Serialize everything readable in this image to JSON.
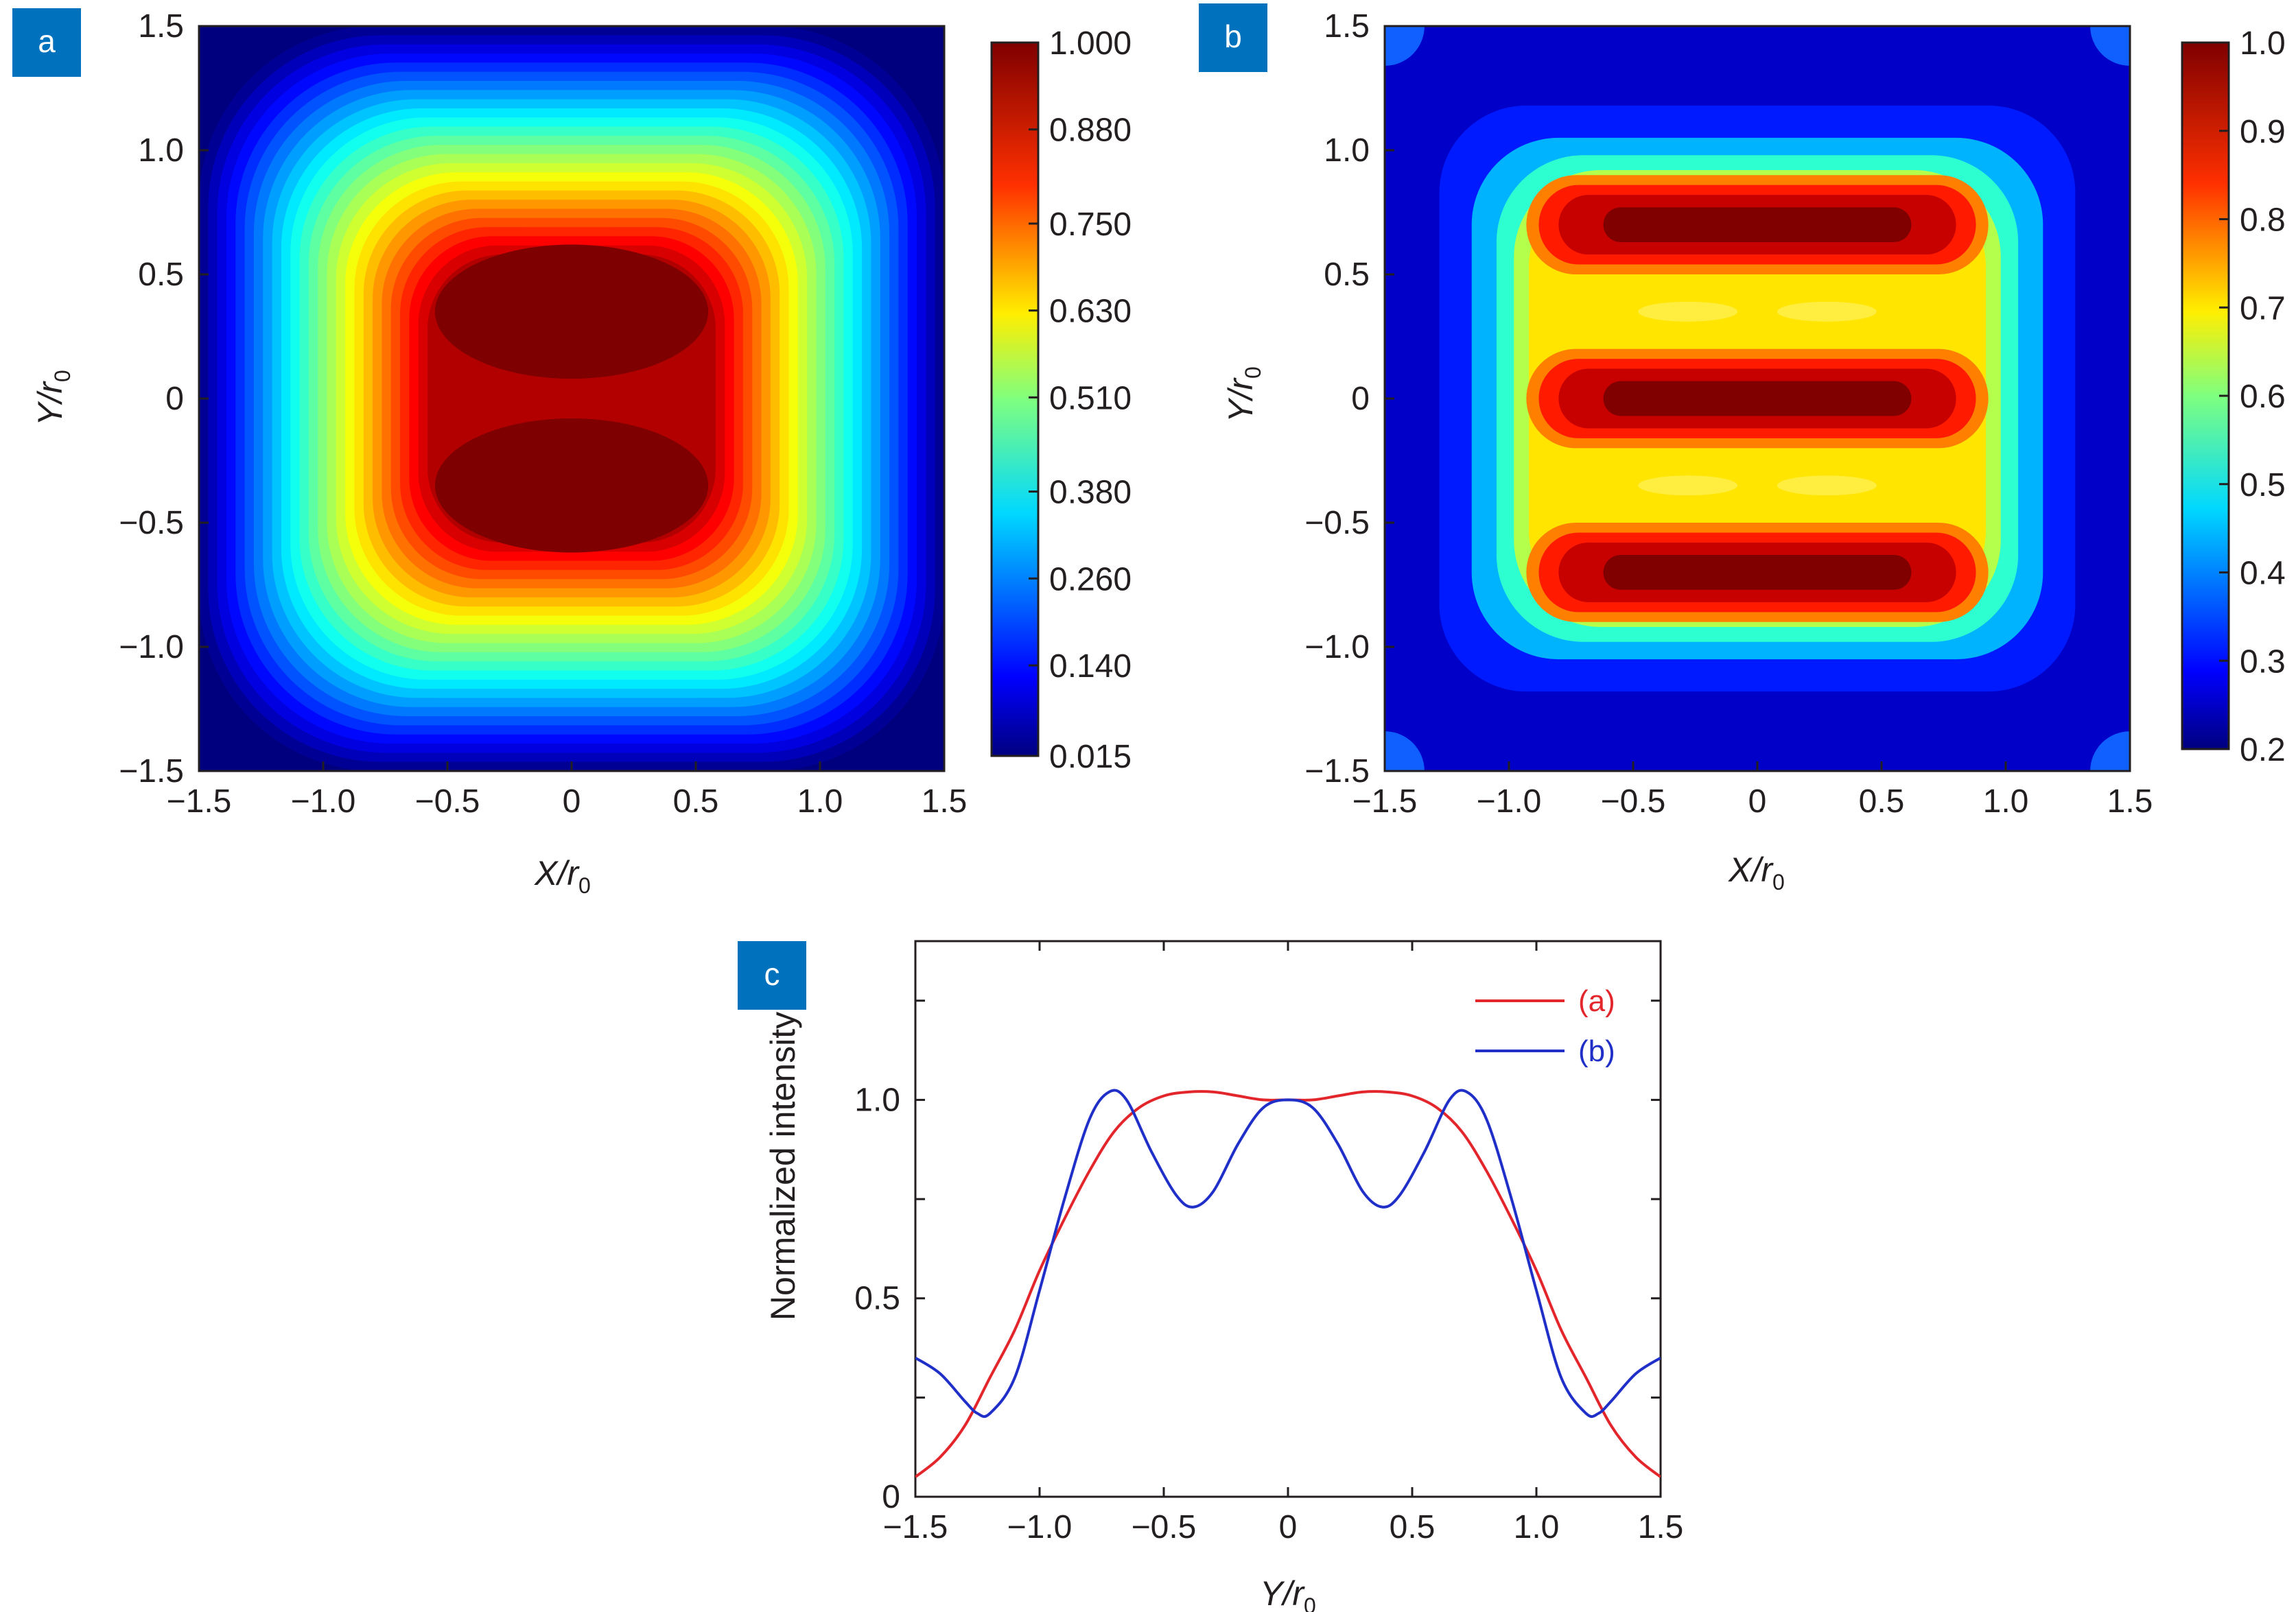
{
  "colors": {
    "badge": "#0071bc",
    "series_a": "#e3262b",
    "series_b": "#1f2fc8",
    "axis": "#231f20"
  },
  "chart_data": [
    {
      "panel": "a",
      "type": "heatmap",
      "title": "",
      "xlabel": "X/r0",
      "ylabel": "Y/r0",
      "xlabel_main": "X/r",
      "ylabel_main": "Y/r",
      "label_subscript": "0",
      "xlim": [
        -1.5,
        1.5
      ],
      "ylim": [
        -1.5,
        1.5
      ],
      "x_ticks": [
        -1.5,
        -1.0,
        -0.5,
        0,
        0.5,
        1.0,
        1.5
      ],
      "x_tick_labels": [
        "−1.5",
        "−1.0",
        "−0.5",
        "0",
        "0.5",
        "1.0",
        "1.5"
      ],
      "y_ticks": [
        1.5,
        1.0,
        0.5,
        0,
        -0.5,
        -1.0,
        -1.5
      ],
      "y_tick_labels": [
        "1.5",
        "1.0",
        "0.5",
        "0",
        "−0.5",
        "−1.0",
        "−1.5"
      ],
      "colorbar": {
        "range": [
          0.015,
          1.0
        ],
        "ticks": [
          1.0,
          0.88,
          0.75,
          0.63,
          0.51,
          0.38,
          0.26,
          0.14,
          0.015
        ],
        "tick_labels": [
          "1.000",
          "0.880",
          "0.750",
          "0.630",
          "0.510",
          "0.380",
          "0.260",
          "0.140",
          "0.015"
        ]
      },
      "colormap": "jet",
      "pattern": "flat-top square beam, two lobes at Y = ±0.35"
    },
    {
      "panel": "b",
      "type": "heatmap",
      "title": "",
      "xlabel": "X/r0",
      "ylabel": "Y/r0",
      "xlabel_main": "X/r",
      "ylabel_main": "Y/r",
      "label_subscript": "0",
      "xlim": [
        -1.5,
        1.5
      ],
      "ylim": [
        -1.5,
        1.5
      ],
      "x_ticks": [
        -1.5,
        -1.0,
        -0.5,
        0,
        0.5,
        1.0,
        1.5
      ],
      "x_tick_labels": [
        "−1.5",
        "−1.0",
        "−0.5",
        "0",
        "0.5",
        "1.0",
        "1.5"
      ],
      "y_ticks": [
        1.5,
        1.0,
        0.5,
        0,
        -0.5,
        -1.0,
        -1.5
      ],
      "y_tick_labels": [
        "1.5",
        "1.0",
        "0.5",
        "0",
        "−0.5",
        "−1.0",
        "−1.5"
      ],
      "colorbar": {
        "range": [
          0.2,
          1.0
        ],
        "ticks": [
          1.0,
          0.9,
          0.8,
          0.7,
          0.6,
          0.5,
          0.4,
          0.3,
          0.2
        ],
        "tick_labels": [
          "1.0",
          "0.9",
          "0.8",
          "0.7",
          "0.6",
          "0.5",
          "0.4",
          "0.3",
          "0.2"
        ]
      },
      "colormap": "jet",
      "pattern": "three horizontal bright bands at Y = -0.7, 0, 0.7"
    },
    {
      "panel": "c",
      "type": "line",
      "title": "",
      "xlabel": "Y/r0",
      "ylabel": "Normalized intensity",
      "xlabel_main": "Y/r",
      "label_subscript": "0",
      "xlim": [
        -1.5,
        1.5
      ],
      "ylim": [
        0,
        1.4
      ],
      "x_ticks": [
        -1.5,
        -1.0,
        -0.5,
        0,
        0.5,
        1.0,
        1.5
      ],
      "x_tick_labels": [
        "−1.5",
        "−1.0",
        "−0.5",
        "0",
        "0.5",
        "1.0",
        "1.5"
      ],
      "y_ticks": [
        0,
        0.5,
        1.0
      ],
      "y_tick_labels": [
        "0",
        "0.5",
        "1.0"
      ],
      "legend_position": "top-right",
      "series": [
        {
          "name": "(a)",
          "x": [
            -1.5,
            -1.4,
            -1.3,
            -1.2,
            -1.1,
            -1.0,
            -0.9,
            -0.8,
            -0.7,
            -0.6,
            -0.5,
            -0.4,
            -0.3,
            -0.2,
            -0.1,
            0,
            0.1,
            0.2,
            0.3,
            0.4,
            0.5,
            0.6,
            0.7,
            0.8,
            0.9,
            1.0,
            1.1,
            1.2,
            1.3,
            1.4,
            1.5
          ],
          "y": [
            0.05,
            0.1,
            0.18,
            0.3,
            0.42,
            0.57,
            0.7,
            0.82,
            0.92,
            0.98,
            1.01,
            1.02,
            1.02,
            1.01,
            1.0,
            1.0,
            1.0,
            1.01,
            1.02,
            1.02,
            1.01,
            0.98,
            0.92,
            0.82,
            0.7,
            0.57,
            0.42,
            0.3,
            0.18,
            0.1,
            0.05
          ]
        },
        {
          "name": "(b)",
          "x": [
            -1.5,
            -1.4,
            -1.3,
            -1.25,
            -1.2,
            -1.1,
            -1.0,
            -0.9,
            -0.8,
            -0.72,
            -0.65,
            -0.55,
            -0.45,
            -0.38,
            -0.3,
            -0.2,
            -0.1,
            0,
            0.1,
            0.2,
            0.3,
            0.38,
            0.45,
            0.55,
            0.65,
            0.72,
            0.8,
            0.9,
            1.0,
            1.1,
            1.2,
            1.25,
            1.3,
            1.4,
            1.5
          ],
          "y": [
            0.35,
            0.31,
            0.24,
            0.21,
            0.21,
            0.3,
            0.52,
            0.75,
            0.95,
            1.02,
            1.0,
            0.87,
            0.76,
            0.73,
            0.77,
            0.89,
            0.98,
            1.0,
            0.98,
            0.89,
            0.77,
            0.73,
            0.76,
            0.87,
            1.0,
            1.02,
            0.95,
            0.75,
            0.52,
            0.3,
            0.21,
            0.21,
            0.24,
            0.31,
            0.35
          ]
        }
      ]
    }
  ]
}
